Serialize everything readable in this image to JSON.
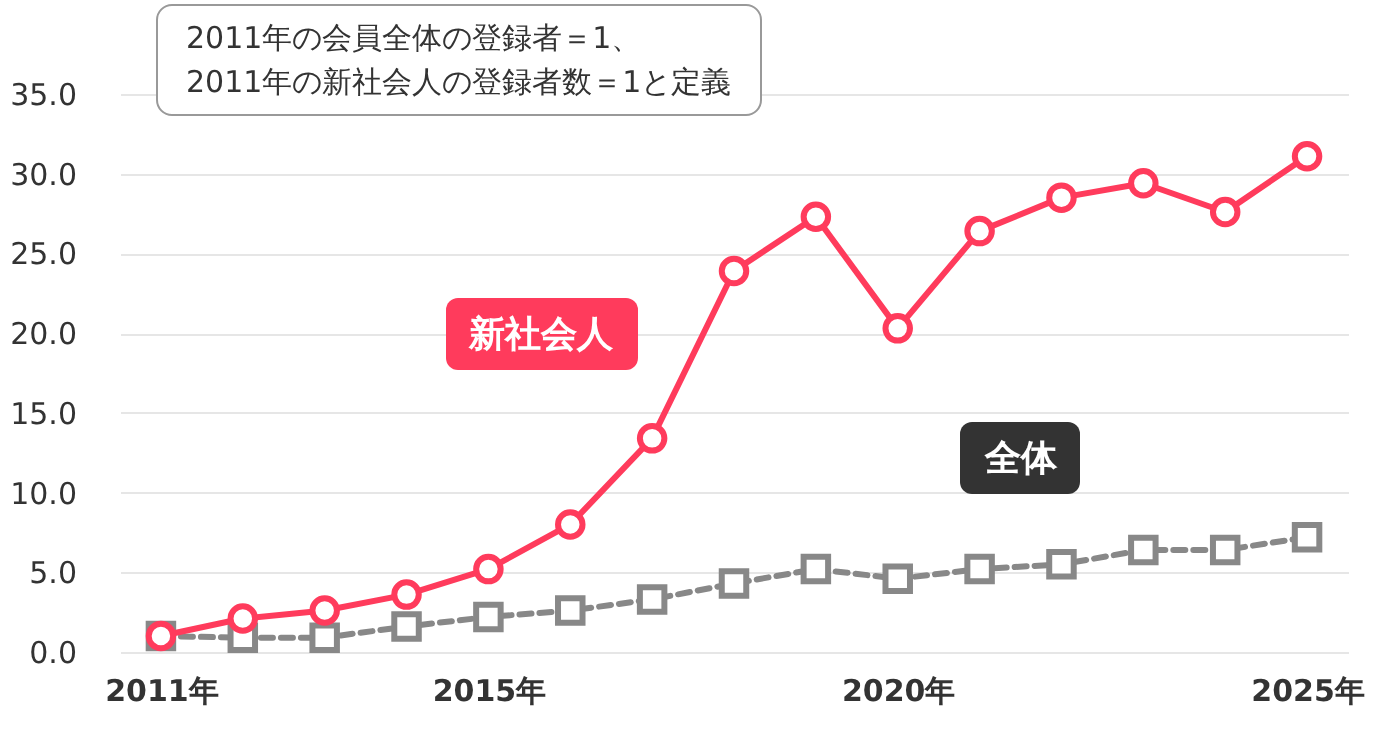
{
  "chart_data": {
    "type": "line",
    "annotations": [
      "2011年の会員全体の登録者＝1、\n2011年の新社会人の登録者数＝1と定義"
    ],
    "x": [
      2011,
      2012,
      2013,
      2014,
      2015,
      2016,
      2017,
      2018,
      2019,
      2020,
      2021,
      2022,
      2023,
      2024,
      2025
    ],
    "series": [
      {
        "name": "新社会人",
        "color": "#ff3b5c",
        "marker": "circle",
        "line_style": "solid",
        "values": [
          1.0,
          2.1,
          2.6,
          3.6,
          5.2,
          8.0,
          13.4,
          23.9,
          27.3,
          20.3,
          26.4,
          28.5,
          29.4,
          27.6,
          31.1
        ]
      },
      {
        "name": "全体",
        "color": "#888888",
        "marker": "square",
        "line_style": "dashed",
        "values": [
          1.0,
          0.9,
          0.9,
          1.6,
          2.2,
          2.6,
          3.3,
          4.3,
          5.2,
          4.6,
          5.2,
          5.5,
          6.4,
          6.4,
          7.2
        ]
      }
    ],
    "xlim": [
      2010.5,
      2025.5
    ],
    "xticks": [
      {
        "value": 2011,
        "label": "2011年"
      },
      {
        "value": 2015,
        "label": "2015年"
      },
      {
        "value": 2020,
        "label": "2020年"
      },
      {
        "value": 2025,
        "label": "2025年"
      }
    ],
    "ylim": [
      0,
      35
    ],
    "yticks": [
      {
        "value": 0,
        "label": "0.0"
      },
      {
        "value": 5,
        "label": "5.0"
      },
      {
        "value": 10,
        "label": "10.0"
      },
      {
        "value": 15,
        "label": "15.0"
      },
      {
        "value": 20,
        "label": "20.0"
      },
      {
        "value": 25,
        "label": "25.0"
      },
      {
        "value": 30,
        "label": "30.0"
      },
      {
        "value": 35,
        "label": "35.0"
      }
    ],
    "grid": "y",
    "legend": false
  }
}
